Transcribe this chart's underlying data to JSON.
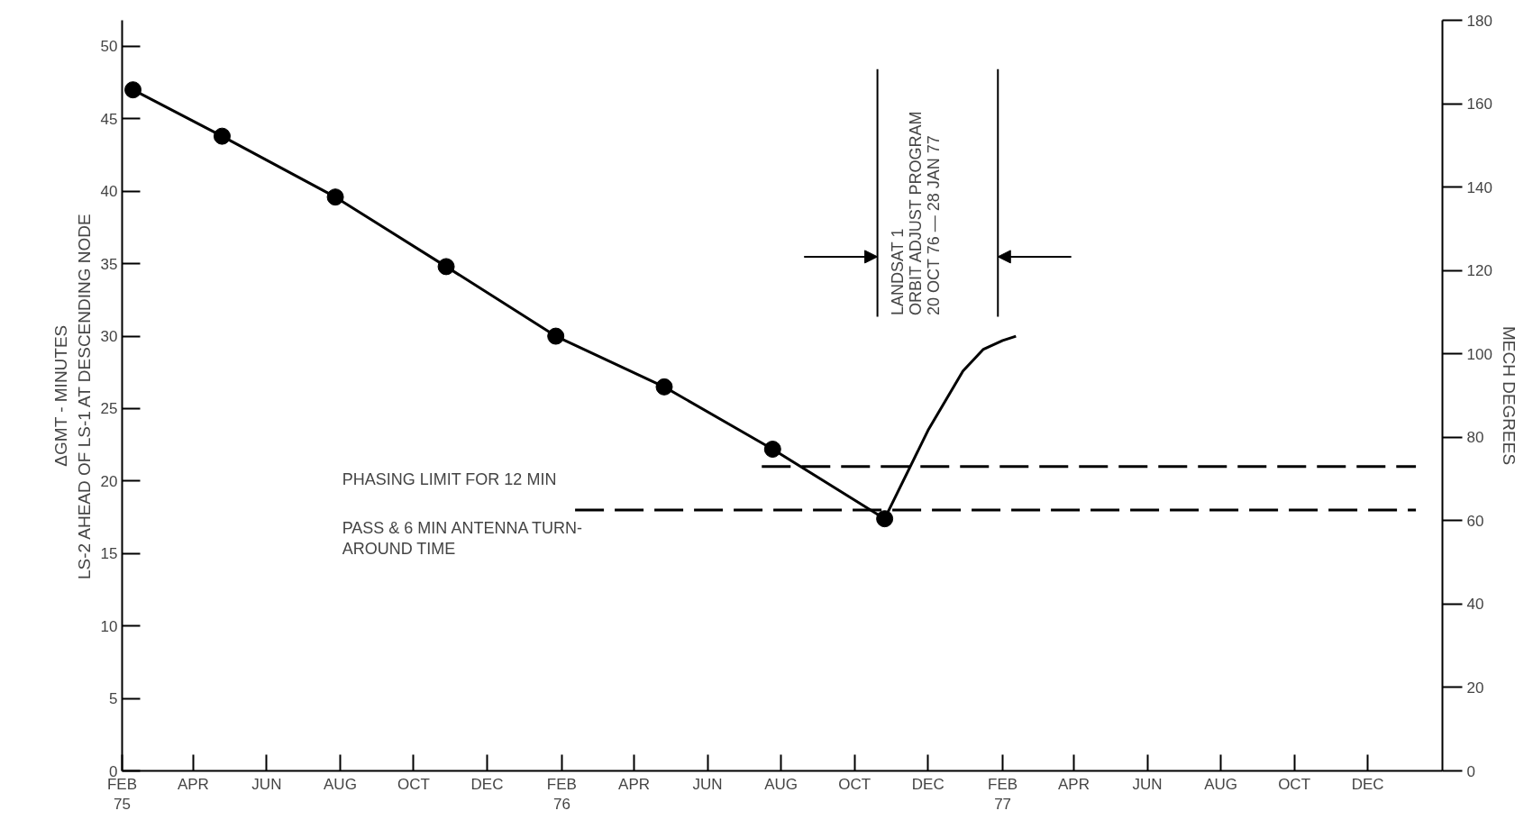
{
  "chart_data": {
    "type": "line",
    "ylabel": "ΔGMT - MINUTES\nLS-2 AHEAD OF LS-1 AT DESCENDING NODE",
    "y2label": "MECH DEGREES",
    "xlim": [
      "1975-02-01",
      "1978-02-01"
    ],
    "ylim": [
      0,
      51.8
    ],
    "y2lim": [
      0,
      180
    ],
    "xticks": [
      {
        "value": "1975-02-01",
        "label": "FEB\n75"
      },
      {
        "value": "1975-04-01",
        "label": "APR"
      },
      {
        "value": "1975-06-01",
        "label": "JUN"
      },
      {
        "value": "1975-08-01",
        "label": "AUG"
      },
      {
        "value": "1975-10-01",
        "label": "OCT"
      },
      {
        "value": "1975-12-01",
        "label": "DEC"
      },
      {
        "value": "1976-02-01",
        "label": "FEB\n76"
      },
      {
        "value": "1976-04-01",
        "label": "APR"
      },
      {
        "value": "1976-06-01",
        "label": "JUN"
      },
      {
        "value": "1976-08-01",
        "label": "AUG"
      },
      {
        "value": "1976-10-01",
        "label": "OCT"
      },
      {
        "value": "1976-12-01",
        "label": "DEC"
      },
      {
        "value": "1977-02-01",
        "label": "FEB\n77"
      },
      {
        "value": "1977-04-01",
        "label": "APR"
      },
      {
        "value": "1977-06-01",
        "label": "JUN"
      },
      {
        "value": "1977-08-01",
        "label": "AUG"
      },
      {
        "value": "1977-10-01",
        "label": "OCT"
      },
      {
        "value": "1977-12-01",
        "label": "DEC"
      }
    ],
    "yticks": [
      0,
      5,
      10,
      15,
      20,
      25,
      30,
      35,
      40,
      45,
      50
    ],
    "y2ticks": [
      0,
      20,
      40,
      60,
      80,
      100,
      120,
      140,
      160,
      180
    ],
    "grid": false,
    "series": [
      {
        "color": "#000000",
        "marker": "circle",
        "x": [
          "1975-02-10",
          "1975-04-25",
          "1975-07-28",
          "1975-10-28",
          "1976-01-27",
          "1976-04-26",
          "1976-07-25",
          "1976-10-26"
        ],
        "values": [
          47,
          43.8,
          39.6,
          34.8,
          30,
          26.5,
          22.2,
          17.4
        ]
      },
      {
        "color": "#000000",
        "marker": "none",
        "x": [
          "1976-10-26",
          "1976-12-01",
          "1976-12-30",
          "1977-01-16",
          "1977-02-01",
          "1977-02-12"
        ],
        "values": [
          17.4,
          23.5,
          27.6,
          29.1,
          29.7,
          30
        ]
      },
      {
        "color": "#000000",
        "marker": "none",
        "line_style": "dashed",
        "x": [
          "1976-07-16",
          "1978-01-10"
        ],
        "values": [
          21,
          21
        ]
      },
      {
        "color": "#000000",
        "marker": "none",
        "line_style": "dashed",
        "x": [
          "1976-02-12",
          "1978-01-10"
        ],
        "values": [
          18,
          18
        ]
      }
    ],
    "ref_lines": [
      {
        "axis": "x",
        "value": "1976-10-20",
        "color": "#000000",
        "label": "LANDSAT 1\nORBIT ADJUST PROGRAM\n20 OCT 76 — 28 JAN 77"
      },
      {
        "axis": "x",
        "value": "1977-01-28",
        "color": "#000000"
      }
    ],
    "annotations": [
      "PHASING LIMIT FOR 12 MIN",
      "PASS & 6 MIN ANTENNA TURN-\nAROUND TIME"
    ]
  }
}
